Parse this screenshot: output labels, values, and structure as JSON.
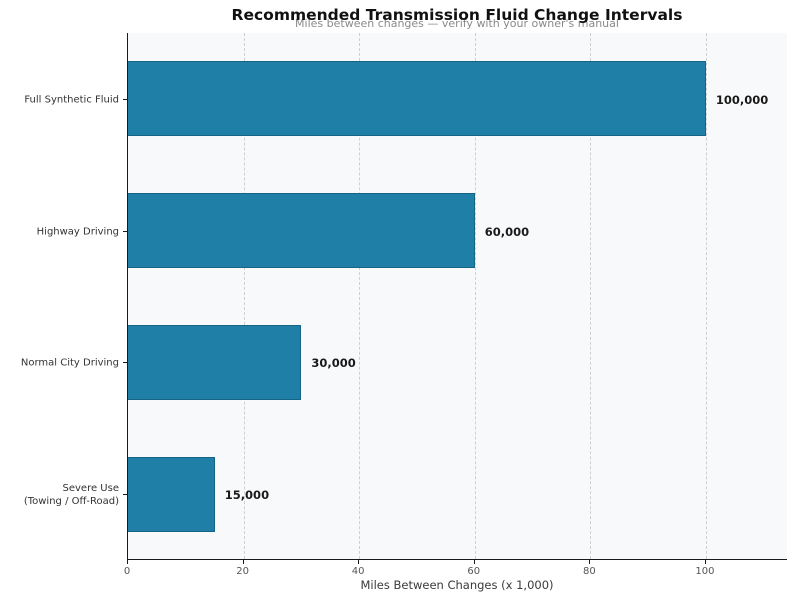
{
  "chart_data": {
    "type": "bar",
    "orientation": "horizontal",
    "title": "Recommended Transmission Fluid Change Intervals",
    "subtitle": "Miles between changes — verify with your owner's manual",
    "categories": [
      "Full Synthetic Fluid",
      "Highway Driving",
      "Normal City Driving",
      "Severe Use\n(Towing / Off-Road)"
    ],
    "values": [
      100,
      60,
      30,
      15
    ],
    "value_labels": [
      "100,000",
      "60,000",
      "30,000",
      "15,000"
    ],
    "xlabel": "Miles Between Changes (x 1,000)",
    "ylabel": "",
    "xticks": [
      0,
      20,
      40,
      60,
      80,
      100
    ],
    "xlim": [
      0,
      114.2
    ],
    "legend": "none",
    "grid": "vertical-dashed",
    "colors": {
      "bar": "#1f7fa6",
      "bar_edge": "#0a465f",
      "plot_background": "#f8f9fa",
      "figure_background": "#ffffff",
      "gridline": "#cfcfcf",
      "spine": "#1a1a1a",
      "title_text": "#111111",
      "subtitle_text": "#8a8a8a",
      "tick_text": "#555555",
      "category_text": "#333333",
      "value_label_text": "#1a1a1a"
    }
  }
}
